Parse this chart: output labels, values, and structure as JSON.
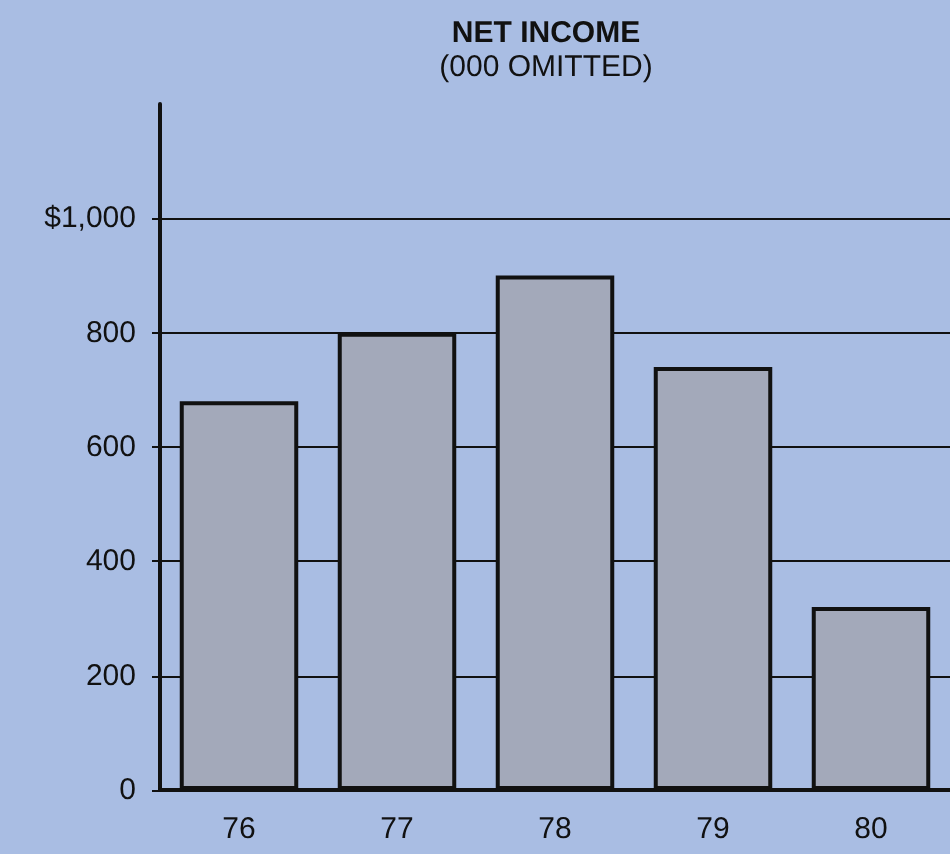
{
  "chart_data": {
    "type": "bar",
    "title": "NET INCOME",
    "subtitle": "(000 OMITTED)",
    "categories": [
      "76",
      "77",
      "78",
      "79",
      "80"
    ],
    "values": [
      680,
      800,
      900,
      740,
      320
    ],
    "color": "#a3a9ba",
    "ylim": [
      0,
      1200
    ],
    "yticks": [
      0,
      200,
      400,
      600,
      800,
      {
        "value": 1000,
        "label": "$1,000"
      }
    ],
    "grid": "y"
  }
}
